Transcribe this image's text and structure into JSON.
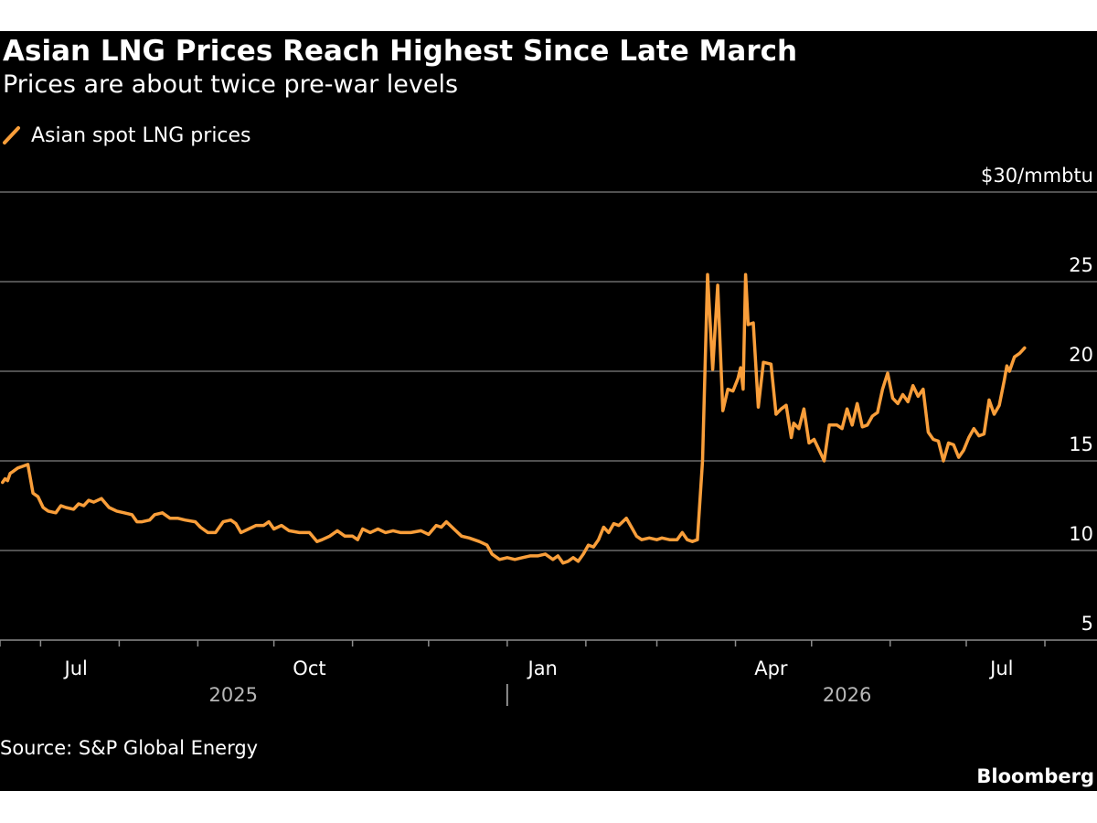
{
  "chart_data": {
    "type": "line",
    "title": "Asian LNG Prices Reach Highest Since Late March",
    "subtitle": "Prices are about twice pre-war levels",
    "unit_label": "$30/mmbtu",
    "source": "Source: S&P Global Energy",
    "brand": "Bloomberg",
    "ylim": [
      5,
      30
    ],
    "y_ticks": [
      {
        "value": 30,
        "label": "$30/mmbtu"
      },
      {
        "value": 25,
        "label": "25"
      },
      {
        "value": 20,
        "label": "20"
      },
      {
        "value": 15,
        "label": "15"
      },
      {
        "value": 10,
        "label": "10"
      },
      {
        "value": 5,
        "label": "5"
      }
    ],
    "xlim": [
      "2025-06-15",
      "2026-08-01"
    ],
    "x_month_ticks": [
      "2025-06-15",
      "2025-07-01",
      "2025-08-01",
      "2025-09-01",
      "2025-10-01",
      "2025-11-01",
      "2025-12-01",
      "2026-01-01",
      "2026-02-01",
      "2026-03-01",
      "2026-04-01",
      "2026-05-01",
      "2026-06-01",
      "2026-07-01",
      "2026-08-01"
    ],
    "x_labels": [
      {
        "date": "2025-07-15",
        "label": "Jul"
      },
      {
        "date": "2025-10-15",
        "label": "Oct"
      },
      {
        "date": "2026-01-15",
        "label": "Jan"
      },
      {
        "date": "2026-04-15",
        "label": "Apr"
      },
      {
        "date": "2026-07-15",
        "label": "Jul"
      }
    ],
    "year_labels": [
      {
        "date": "2025-09-15",
        "label": "2025"
      },
      {
        "date": "2026-05-15",
        "label": "2026"
      }
    ],
    "year_divider": "2026-01-01",
    "grid": true,
    "legend_position": "top-left",
    "series": [
      {
        "name": "Asian spot LNG prices",
        "color": "#f99e3a",
        "points": [
          [
            "2025-06-16",
            13.8
          ],
          [
            "2025-06-17",
            14.0
          ],
          [
            "2025-06-18",
            13.9
          ],
          [
            "2025-06-19",
            14.3
          ],
          [
            "2025-06-20",
            14.4
          ],
          [
            "2025-06-22",
            14.6
          ],
          [
            "2025-06-24",
            14.7
          ],
          [
            "2025-06-26",
            14.8
          ],
          [
            "2025-06-28",
            13.2
          ],
          [
            "2025-06-30",
            13.0
          ],
          [
            "2025-07-02",
            12.4
          ],
          [
            "2025-07-04",
            12.2
          ],
          [
            "2025-07-07",
            12.1
          ],
          [
            "2025-07-09",
            12.5
          ],
          [
            "2025-07-11",
            12.4
          ],
          [
            "2025-07-14",
            12.3
          ],
          [
            "2025-07-16",
            12.6
          ],
          [
            "2025-07-18",
            12.5
          ],
          [
            "2025-07-20",
            12.8
          ],
          [
            "2025-07-22",
            12.7
          ],
          [
            "2025-07-25",
            12.9
          ],
          [
            "2025-07-28",
            12.4
          ],
          [
            "2025-07-31",
            12.2
          ],
          [
            "2025-08-03",
            12.1
          ],
          [
            "2025-08-06",
            12.0
          ],
          [
            "2025-08-08",
            11.6
          ],
          [
            "2025-08-10",
            11.6
          ],
          [
            "2025-08-13",
            11.7
          ],
          [
            "2025-08-15",
            12.0
          ],
          [
            "2025-08-18",
            12.1
          ],
          [
            "2025-08-21",
            11.8
          ],
          [
            "2025-08-24",
            11.8
          ],
          [
            "2025-08-27",
            11.7
          ],
          [
            "2025-08-31",
            11.6
          ],
          [
            "2025-09-02",
            11.3
          ],
          [
            "2025-09-05",
            11.0
          ],
          [
            "2025-09-08",
            11.0
          ],
          [
            "2025-09-11",
            11.6
          ],
          [
            "2025-09-14",
            11.7
          ],
          [
            "2025-09-16",
            11.5
          ],
          [
            "2025-09-18",
            11.0
          ],
          [
            "2025-09-21",
            11.2
          ],
          [
            "2025-09-24",
            11.4
          ],
          [
            "2025-09-27",
            11.4
          ],
          [
            "2025-09-29",
            11.6
          ],
          [
            "2025-10-01",
            11.2
          ],
          [
            "2025-10-04",
            11.4
          ],
          [
            "2025-10-07",
            11.1
          ],
          [
            "2025-10-11",
            11.0
          ],
          [
            "2025-10-15",
            11.0
          ],
          [
            "2025-10-18",
            10.5
          ],
          [
            "2025-10-20",
            10.6
          ],
          [
            "2025-10-23",
            10.8
          ],
          [
            "2025-10-26",
            11.1
          ],
          [
            "2025-10-29",
            10.8
          ],
          [
            "2025-11-01",
            10.8
          ],
          [
            "2025-11-03",
            10.6
          ],
          [
            "2025-11-05",
            11.2
          ],
          [
            "2025-11-08",
            11.0
          ],
          [
            "2025-11-11",
            11.2
          ],
          [
            "2025-11-14",
            11.0
          ],
          [
            "2025-11-17",
            11.1
          ],
          [
            "2025-11-20",
            11.0
          ],
          [
            "2025-11-24",
            11.0
          ],
          [
            "2025-11-28",
            11.1
          ],
          [
            "2025-12-01",
            10.9
          ],
          [
            "2025-12-04",
            11.4
          ],
          [
            "2025-12-06",
            11.3
          ],
          [
            "2025-12-08",
            11.6
          ],
          [
            "2025-12-11",
            11.2
          ],
          [
            "2025-12-14",
            10.8
          ],
          [
            "2025-12-17",
            10.7
          ],
          [
            "2025-12-21",
            10.5
          ],
          [
            "2025-12-24",
            10.3
          ],
          [
            "2025-12-26",
            9.8
          ],
          [
            "2025-12-29",
            9.5
          ],
          [
            "2026-01-01",
            9.6
          ],
          [
            "2026-01-04",
            9.5
          ],
          [
            "2026-01-07",
            9.6
          ],
          [
            "2026-01-10",
            9.7
          ],
          [
            "2026-01-13",
            9.7
          ],
          [
            "2026-01-16",
            9.8
          ],
          [
            "2026-01-19",
            9.5
          ],
          [
            "2026-01-21",
            9.7
          ],
          [
            "2026-01-23",
            9.3
          ],
          [
            "2026-01-25",
            9.4
          ],
          [
            "2026-01-27",
            9.6
          ],
          [
            "2026-01-29",
            9.4
          ],
          [
            "2026-01-31",
            9.8
          ],
          [
            "2026-02-02",
            10.3
          ],
          [
            "2026-02-04",
            10.2
          ],
          [
            "2026-02-06",
            10.6
          ],
          [
            "2026-02-08",
            11.3
          ],
          [
            "2026-02-10",
            11.0
          ],
          [
            "2026-02-12",
            11.5
          ],
          [
            "2026-02-14",
            11.4
          ],
          [
            "2026-02-17",
            11.8
          ],
          [
            "2026-02-19",
            11.3
          ],
          [
            "2026-02-21",
            10.8
          ],
          [
            "2026-02-23",
            10.6
          ],
          [
            "2026-02-26",
            10.7
          ],
          [
            "2026-03-01",
            10.6
          ],
          [
            "2026-03-03",
            10.7
          ],
          [
            "2026-03-06",
            10.6
          ],
          [
            "2026-03-09",
            10.6
          ],
          [
            "2026-03-11",
            11.0
          ],
          [
            "2026-03-13",
            10.6
          ],
          [
            "2026-03-15",
            10.5
          ],
          [
            "2026-03-17",
            10.6
          ],
          [
            "2026-03-19",
            15.0
          ],
          [
            "2026-03-21",
            25.4
          ],
          [
            "2026-03-23",
            20.1
          ],
          [
            "2026-03-25",
            24.8
          ],
          [
            "2026-03-27",
            17.8
          ],
          [
            "2026-03-29",
            19.0
          ],
          [
            "2026-03-31",
            18.9
          ],
          [
            "2026-04-02",
            19.6
          ],
          [
            "2026-04-03",
            20.2
          ],
          [
            "2026-04-04",
            19.0
          ],
          [
            "2026-04-05",
            25.4
          ],
          [
            "2026-04-06",
            22.6
          ],
          [
            "2026-04-08",
            22.7
          ],
          [
            "2026-04-10",
            18.0
          ],
          [
            "2026-04-12",
            20.5
          ],
          [
            "2026-04-15",
            20.4
          ],
          [
            "2026-04-17",
            17.6
          ],
          [
            "2026-04-19",
            17.9
          ],
          [
            "2026-04-21",
            18.1
          ],
          [
            "2026-04-23",
            16.3
          ],
          [
            "2026-04-24",
            17.1
          ],
          [
            "2026-04-26",
            16.8
          ],
          [
            "2026-04-28",
            17.9
          ],
          [
            "2026-04-30",
            16.0
          ],
          [
            "2026-05-02",
            16.2
          ],
          [
            "2026-05-04",
            15.6
          ],
          [
            "2026-05-06",
            15.0
          ],
          [
            "2026-05-08",
            17.0
          ],
          [
            "2026-05-11",
            17.0
          ],
          [
            "2026-05-13",
            16.8
          ],
          [
            "2026-05-15",
            17.9
          ],
          [
            "2026-05-17",
            17.0
          ],
          [
            "2026-05-19",
            18.2
          ],
          [
            "2026-05-21",
            16.9
          ],
          [
            "2026-05-23",
            17.0
          ],
          [
            "2026-05-25",
            17.5
          ],
          [
            "2026-05-27",
            17.7
          ],
          [
            "2026-05-29",
            19.0
          ],
          [
            "2026-05-31",
            19.9
          ],
          [
            "2026-06-02",
            18.5
          ],
          [
            "2026-06-04",
            18.2
          ],
          [
            "2026-06-06",
            18.7
          ],
          [
            "2026-06-08",
            18.3
          ],
          [
            "2026-06-10",
            19.2
          ],
          [
            "2026-06-12",
            18.6
          ],
          [
            "2026-06-14",
            19.0
          ],
          [
            "2026-06-16",
            16.6
          ],
          [
            "2026-06-18",
            16.2
          ],
          [
            "2026-06-20",
            16.1
          ],
          [
            "2026-06-22",
            15.0
          ],
          [
            "2026-06-24",
            16.0
          ],
          [
            "2026-06-26",
            15.9
          ],
          [
            "2026-06-28",
            15.2
          ],
          [
            "2026-06-30",
            15.6
          ],
          [
            "2026-07-02",
            16.3
          ],
          [
            "2026-07-04",
            16.8
          ],
          [
            "2026-07-06",
            16.4
          ],
          [
            "2026-07-08",
            16.5
          ],
          [
            "2026-07-10",
            18.4
          ],
          [
            "2026-07-12",
            17.6
          ],
          [
            "2026-07-14",
            18.1
          ],
          [
            "2026-07-16",
            19.5
          ],
          [
            "2026-07-17",
            20.3
          ],
          [
            "2026-07-18",
            20.0
          ],
          [
            "2026-07-20",
            20.8
          ],
          [
            "2026-07-22",
            21.0
          ],
          [
            "2026-07-24",
            21.3
          ]
        ]
      }
    ]
  }
}
